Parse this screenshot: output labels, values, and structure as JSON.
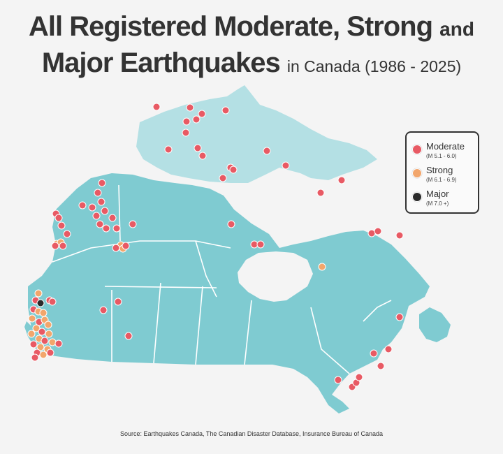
{
  "title": {
    "line1": "All Registered Moderate, Strong",
    "line1_suffix": "and",
    "line2": "Major Earthquakes",
    "line2_suffix": "in Canada (1986 - 2025)"
  },
  "legend": [
    {
      "name": "Moderate",
      "range": "(M 5.1 - 6.0)",
      "color": "#e85a64"
    },
    {
      "name": "Strong",
      "range": "(M 6.1 - 6.9)",
      "color": "#f2a66c"
    },
    {
      "name": "Major",
      "range": "(M 7.0 +)",
      "color": "#2b2b2b"
    }
  ],
  "source": "Source: Earthquakes Canada, The Canadian Disaster Database, Insurance Bureau of Canada",
  "colors": {
    "land": "#7fcbd1",
    "land_light": "#b4e0e4",
    "border": "#ffffff",
    "background": "#f4f4f4"
  }
}
